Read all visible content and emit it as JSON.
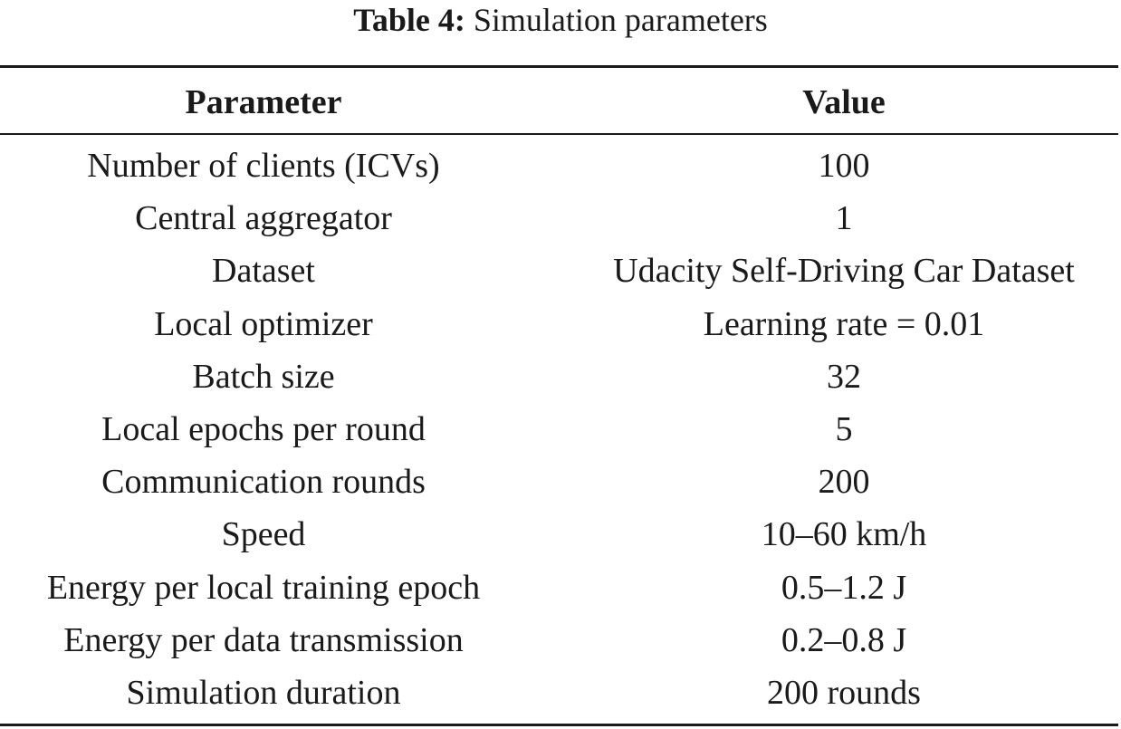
{
  "caption": {
    "label": "Table 4:",
    "text": "Simulation parameters"
  },
  "table": {
    "headers": [
      "Parameter",
      "Value"
    ],
    "rows": [
      {
        "parameter": "Number of clients (ICVs)",
        "value": "100"
      },
      {
        "parameter": "Central aggregator",
        "value": "1"
      },
      {
        "parameter": "Dataset",
        "value": "Udacity Self-Driving Car Dataset"
      },
      {
        "parameter": "Local optimizer",
        "value": "Learning rate = 0.01"
      },
      {
        "parameter": "Batch size",
        "value": "32"
      },
      {
        "parameter": "Local epochs per round",
        "value": "5"
      },
      {
        "parameter": "Communication rounds",
        "value": "200"
      },
      {
        "parameter": "Speed",
        "value": "10–60 km/h"
      },
      {
        "parameter": "Energy per local training epoch",
        "value": "0.5–1.2 J"
      },
      {
        "parameter": "Energy per data transmission",
        "value": "0.2–0.8 J"
      },
      {
        "parameter": "Simulation duration",
        "value": "200 rounds"
      }
    ]
  }
}
